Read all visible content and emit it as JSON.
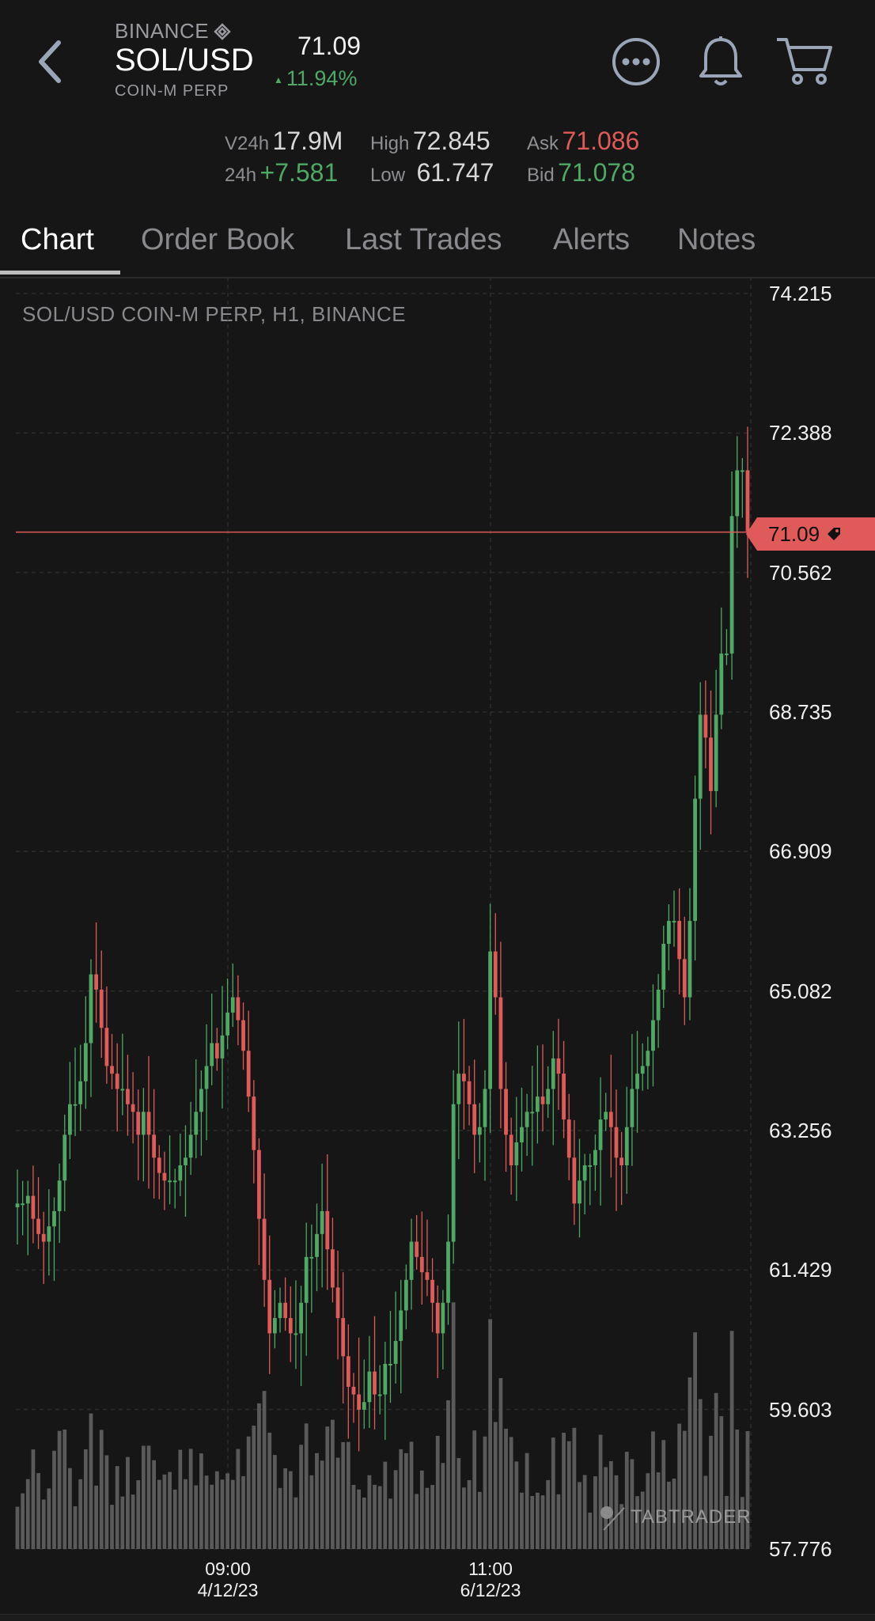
{
  "header": {
    "exchange": "BINANCE",
    "pair": "SOL/USD",
    "subtitle": "COIN-M PERP",
    "last_price": "71.09",
    "change_pct": "11.94%",
    "icons": [
      "back-chevron-icon",
      "more-icon",
      "bell-icon",
      "cart-icon"
    ]
  },
  "stats": {
    "v24h_label": "V24h",
    "v24h_value": "17.9M",
    "change24_label": "24h",
    "change24_value": "+7.581",
    "high_label": "High",
    "high_value": "72.845",
    "low_label": "Low",
    "low_value": "61.747",
    "ask_label": "Ask",
    "ask_value": "71.086",
    "bid_label": "Bid",
    "bid_value": "71.078"
  },
  "tabs": [
    {
      "label": "Chart",
      "active": true
    },
    {
      "label": "Order Book",
      "active": false
    },
    {
      "label": "Last Trades",
      "active": false
    },
    {
      "label": "Alerts",
      "active": false
    },
    {
      "label": "Notes",
      "active": false
    }
  ],
  "chart_label": "SOL/USD COIN-M PERP, H1, BINANCE",
  "current_price_tag": "71.09",
  "watermark": "TABTRADER",
  "colors": {
    "up": "#4fa866",
    "down": "#e05a5a",
    "volume": "#5a5a5a",
    "background": "#161616"
  },
  "chart_data": {
    "type": "candlestick",
    "timeframe": "H1",
    "y_ticks": [
      "74.215",
      "72.388",
      "70.562",
      "68.735",
      "66.909",
      "65.082",
      "63.256",
      "61.429",
      "59.603",
      "57.776"
    ],
    "ylim": [
      57.776,
      74.215
    ],
    "x_ticks": [
      {
        "time": "09:00",
        "date": "4/12/23"
      },
      {
        "time": "11:00",
        "date": "6/12/23"
      }
    ],
    "last_price": 71.09,
    "close": [
      62.3,
      62.3,
      62.4,
      62.1,
      61.9,
      61.8,
      62.0,
      62.2,
      62.6,
      63.2,
      63.6,
      63.6,
      63.9,
      64.4,
      65.3,
      65.1,
      64.6,
      64.1,
      64.0,
      63.8,
      63.8,
      63.6,
      63.5,
      63.2,
      63.5,
      63.2,
      62.9,
      62.7,
      62.6,
      62.6,
      62.6,
      62.8,
      62.9,
      63.2,
      63.5,
      63.8,
      64.1,
      64.4,
      64.2,
      64.5,
      64.8,
      65.0,
      64.7,
      64.3,
      63.7,
      63.0,
      62.1,
      61.3,
      60.6,
      60.8,
      61.0,
      60.8,
      60.6,
      60.6,
      61.0,
      61.6,
      61.6,
      61.9,
      62.2,
      61.7,
      61.2,
      60.8,
      60.3,
      59.9,
      59.8,
      59.6,
      59.7,
      60.1,
      59.8,
      59.8,
      60.2,
      60.2,
      60.5,
      60.9,
      61.3,
      61.8,
      61.6,
      61.4,
      61.3,
      61.0,
      60.6,
      61.0,
      61.8,
      63.6,
      64.0,
      63.9,
      63.6,
      63.2,
      63.3,
      63.8,
      65.6,
      65.0,
      63.8,
      63.2,
      62.8,
      63.1,
      63.3,
      63.5,
      63.5,
      63.7,
      63.6,
      63.8,
      64.2,
      64.0,
      63.4,
      62.9,
      62.3,
      62.6,
      62.8,
      62.8,
      63.0,
      63.4,
      63.5,
      63.3,
      62.9,
      62.8,
      63.3,
      63.8,
      64.0,
      64.1,
      64.3,
      64.7,
      65.1,
      65.7,
      66.0,
      66.0,
      65.5,
      65.0,
      66.0,
      67.6,
      68.7,
      68.4,
      67.7,
      68.7,
      69.5,
      69.5,
      71.3,
      71.9,
      71.9,
      71.1
    ]
  }
}
